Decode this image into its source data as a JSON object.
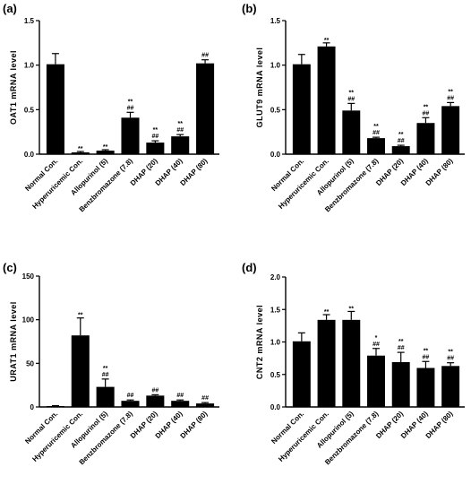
{
  "chart_data": [
    {
      "panel": "(a)",
      "type": "bar",
      "ylabel": "OAT1 mRNA level",
      "ylim": [
        0,
        1.5
      ],
      "yticks": [
        "0.0",
        "0.5",
        "1.0",
        "1.5"
      ],
      "ytick_values": [
        0,
        0.5,
        1.0,
        1.5
      ],
      "categories": [
        "Normal Con.",
        "Hyperuricemic Con.",
        "Allopurinol (5)",
        "Benzbromazone (7.8)",
        "DHAP (20)",
        "DHAP (40)",
        "DHAP (80)"
      ],
      "values": [
        1.01,
        0.02,
        0.04,
        0.41,
        0.13,
        0.2,
        1.02
      ],
      "errors": [
        0.12,
        0.01,
        0.01,
        0.06,
        0.02,
        0.02,
        0.04
      ],
      "sig_star": [
        "",
        "**",
        "**",
        "**",
        "**",
        "**",
        ""
      ],
      "sig_hash": [
        "",
        "",
        "",
        "##",
        "##",
        "##",
        "##"
      ],
      "color": "#000000"
    },
    {
      "panel": "(b)",
      "type": "bar",
      "ylabel": "GLUT9 mRNA level",
      "ylim": [
        0,
        1.5
      ],
      "yticks": [
        "0.0",
        "0.5",
        "1.0",
        "1.5"
      ],
      "ytick_values": [
        0,
        0.5,
        1.0,
        1.5
      ],
      "categories": [
        "Normal Con.",
        "Hyperuricemic Con.",
        "Allopurinol (5)",
        "Benzbromazone (7.8)",
        "DHAP (20)",
        "DHAP (40)",
        "DHAP (80)"
      ],
      "values": [
        1.01,
        1.21,
        0.49,
        0.18,
        0.09,
        0.35,
        0.54
      ],
      "errors": [
        0.11,
        0.04,
        0.08,
        0.01,
        0.01,
        0.06,
        0.04
      ],
      "sig_star": [
        "",
        "**",
        "**",
        "**",
        "**",
        "**",
        "**"
      ],
      "sig_hash": [
        "",
        "",
        "##",
        "##",
        "##",
        "##",
        "##"
      ],
      "color": "#000000"
    },
    {
      "panel": "(c)",
      "type": "bar",
      "ylabel": "URAT1 mRNA level",
      "ylim": [
        0,
        150
      ],
      "yticks": [
        "0",
        "50",
        "100",
        "150"
      ],
      "ytick_values": [
        0,
        50,
        100,
        150
      ],
      "categories": [
        "Normal Con.",
        "Hyperuricemic Con.",
        "Allopurinol (5)",
        "Benzbromazone (7.8)",
        "DHAP (20)",
        "DHAP (40)",
        "DHAP (80)"
      ],
      "values": [
        1,
        82,
        23,
        7,
        13,
        7,
        4
      ],
      "errors": [
        0.5,
        20,
        9,
        1,
        1,
        1,
        1
      ],
      "sig_star": [
        "",
        "**",
        "**",
        "",
        "",
        "",
        ""
      ],
      "sig_hash": [
        "",
        "",
        "##",
        "##",
        "##",
        "##",
        "##"
      ],
      "color": "#000000"
    },
    {
      "panel": "(d)",
      "type": "bar",
      "ylabel": "CNT2 mRNA level",
      "ylim": [
        0,
        2.0
      ],
      "yticks": [
        "0.0",
        "0.5",
        "1.0",
        "1.5",
        "2.0"
      ],
      "ytick_values": [
        0,
        0.5,
        1.0,
        1.5,
        2.0
      ],
      "categories": [
        "Normal Con.",
        "Hyperuricemic Con.",
        "Allopurinol (5)",
        "Benzbromazone (7.8)",
        "DHAP (20)",
        "DHAP (40)",
        "DHAP (80)"
      ],
      "values": [
        1.01,
        1.34,
        1.34,
        0.79,
        0.69,
        0.6,
        0.63
      ],
      "errors": [
        0.13,
        0.08,
        0.13,
        0.11,
        0.15,
        0.1,
        0.05
      ],
      "sig_star": [
        "",
        "**",
        "**",
        "*",
        "**",
        "**",
        "**"
      ],
      "sig_hash": [
        "",
        "",
        "",
        "##",
        "##",
        "##",
        "##"
      ],
      "color": "#000000"
    }
  ]
}
